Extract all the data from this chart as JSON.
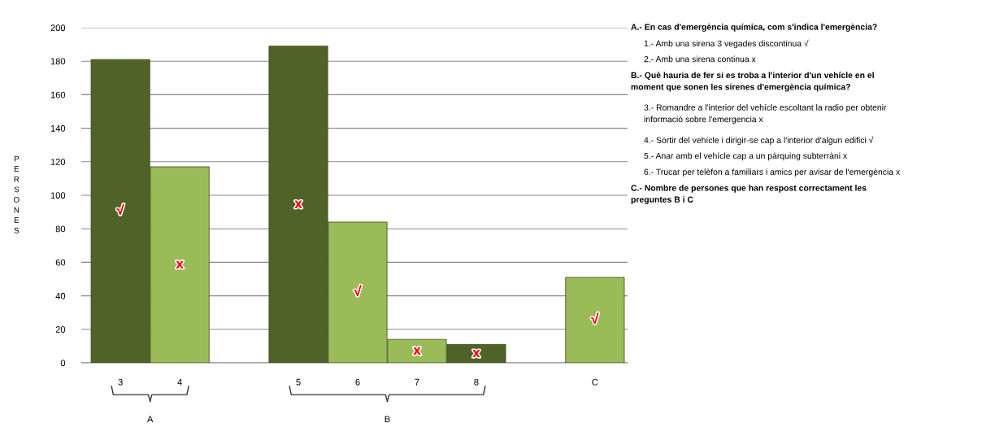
{
  "chart_data": {
    "type": "bar",
    "ylabel": "PERSONES",
    "categories": [
      "3",
      "4",
      null,
      "5",
      "6",
      "7",
      "8",
      null,
      "C"
    ],
    "values": [
      181,
      117,
      null,
      189,
      84,
      14,
      11,
      null,
      51
    ],
    "value_labels": [
      "√",
      "x",
      null,
      "x",
      "√",
      "x",
      "x",
      null,
      "√"
    ],
    "colors": [
      "#4f6228",
      "#9bbb59",
      "#9bbb59",
      "#4f6228",
      "#9bbb59",
      "#9bbb59",
      "#4f6228",
      "#9bbb59",
      "#9bbb59"
    ],
    "ylim": [
      0,
      200
    ],
    "yticks": [
      0,
      20,
      40,
      60,
      80,
      100,
      120,
      140,
      160,
      180,
      200
    ],
    "grid": "y",
    "annotations": [
      "A.- En cas d'emergència química, com s'indica l'emergència?",
      "1.- Amb una sirena 3 vegades discontinua √",
      "2.- Amb una sirena continua x",
      "B.- Què hauria de fer si es troba a l'interior d'un vehícle en el\nmoment que sonen les sirenes d'emergència química?",
      "3.- Romandre a l'interior del vehícle escoltant la radio per obtenir\ninformació sobre l'emergencia x",
      "4.- Sortir del vehícle i dirigir-se cap a l'interior d'algun edifici √",
      "5.- Anar amb el vehícle cap a un pàrquing subterràni x",
      "6.- Trucar per telèfon a familiars i amics per avisar de l'emergència x",
      "C.- Nombre de persones que han respost correctament les\npreguntes B i C",
      "A",
      "B"
    ]
  }
}
